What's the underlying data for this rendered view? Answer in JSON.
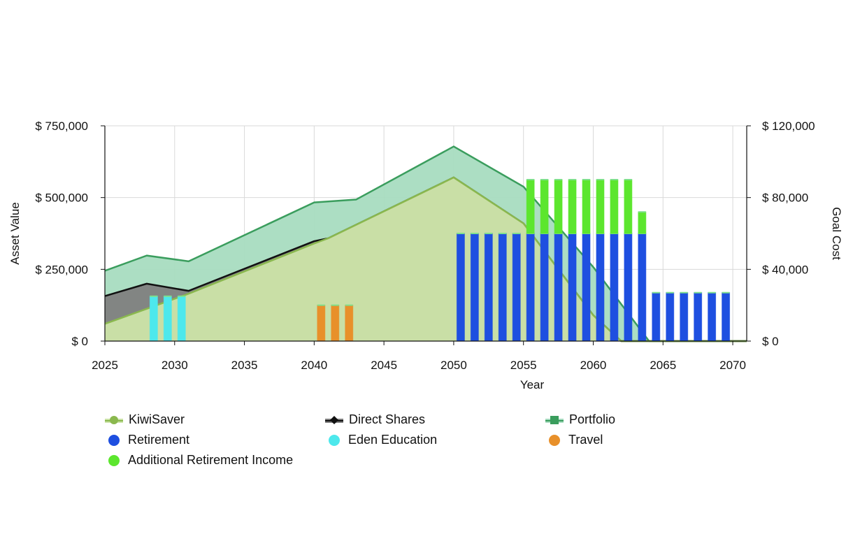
{
  "chart_data": {
    "type": "area",
    "x_axis": {
      "label": "Year",
      "range": [
        2025,
        2071
      ],
      "ticks": [
        2025,
        2030,
        2035,
        2040,
        2045,
        2050,
        2055,
        2060,
        2065,
        2070
      ]
    },
    "y_axis_left": {
      "label": "Asset Value",
      "range": [
        0,
        750000
      ],
      "tick_values": [
        0,
        250000,
        500000,
        750000
      ],
      "tick_labels": [
        "$ 0",
        "$ 250,000",
        "$ 500,000",
        "$ 750,000"
      ]
    },
    "y_axis_right": {
      "label": "Goal Cost",
      "range": [
        0,
        120000
      ],
      "tick_values": [
        0,
        40000,
        80000,
        120000
      ],
      "tick_labels": [
        "$ 0",
        "$ 40,000",
        "$ 80,000",
        "$ 120,000"
      ]
    },
    "grid": true,
    "legend_position": "bottom",
    "asset_series": [
      {
        "name": "Portfolio",
        "color": "#3a9d5d",
        "fill": "#a8dcc0",
        "points": [
          [
            2025,
            245000
          ],
          [
            2028,
            298000
          ],
          [
            2031,
            278000
          ],
          [
            2040,
            483000
          ],
          [
            2043,
            493000
          ],
          [
            2050,
            678000
          ],
          [
            2055,
            538000
          ],
          [
            2060,
            258000
          ],
          [
            2064,
            0
          ],
          [
            2071,
            0
          ]
        ]
      },
      {
        "name": "Direct Shares",
        "color": "#111111",
        "fill": "#808080",
        "points": [
          [
            2025,
            157000
          ],
          [
            2028,
            200000
          ],
          [
            2031,
            175000
          ],
          [
            2040,
            348000
          ],
          [
            2041,
            358000
          ],
          [
            2050,
            570000
          ],
          [
            2055,
            410000
          ],
          [
            2060,
            90000
          ],
          [
            2062,
            0
          ],
          [
            2071,
            0
          ]
        ]
      },
      {
        "name": "KiwiSaver",
        "color": "#8ab84e",
        "fill": "#cce4a8",
        "points": [
          [
            2025,
            60000
          ],
          [
            2031,
            165000
          ],
          [
            2040,
            340000
          ],
          [
            2041,
            358000
          ],
          [
            2050,
            570000
          ],
          [
            2055,
            410000
          ],
          [
            2060,
            90000
          ],
          [
            2062,
            0
          ],
          [
            2071,
            0
          ]
        ]
      }
    ],
    "goal_series": [
      {
        "name": "Eden Education",
        "color": "#4de8ec",
        "bars": [
          [
            2028.5,
            25000
          ],
          [
            2029.5,
            25000
          ],
          [
            2030.5,
            25000
          ]
        ]
      },
      {
        "name": "Travel",
        "color": "#e8902a",
        "bars": [
          [
            2040.5,
            20000
          ],
          [
            2041.5,
            20000
          ],
          [
            2042.5,
            20000
          ]
        ]
      },
      {
        "name": "Retirement",
        "color": "#1e4fe0",
        "bars": [
          [
            2050.5,
            60000
          ],
          [
            2051.5,
            60000
          ],
          [
            2052.5,
            60000
          ],
          [
            2053.5,
            60000
          ],
          [
            2054.5,
            60000
          ],
          [
            2055.5,
            60000
          ],
          [
            2056.5,
            60000
          ],
          [
            2057.5,
            60000
          ],
          [
            2058.5,
            60000
          ],
          [
            2059.5,
            60000
          ],
          [
            2060.5,
            60000
          ],
          [
            2061.5,
            60000
          ],
          [
            2062.5,
            60000
          ],
          [
            2063.5,
            60000
          ],
          [
            2064.5,
            27000
          ],
          [
            2065.5,
            27000
          ],
          [
            2066.5,
            27000
          ],
          [
            2067.5,
            27000
          ],
          [
            2068.5,
            27000
          ],
          [
            2069.5,
            27000
          ]
        ]
      },
      {
        "name": "Additional Retirement Income",
        "color": "#5ce62e",
        "bars": [
          [
            2055.5,
            30000
          ],
          [
            2056.5,
            30000
          ],
          [
            2057.5,
            30000
          ],
          [
            2058.5,
            30000
          ],
          [
            2059.5,
            30000
          ],
          [
            2060.5,
            30000
          ],
          [
            2061.5,
            30000
          ],
          [
            2062.5,
            30000
          ],
          [
            2063.5,
            12000
          ]
        ]
      }
    ]
  },
  "legend": [
    {
      "label": "KiwiSaver",
      "icon": "circle-area-icon",
      "color": "#8ab84e"
    },
    {
      "label": "Direct Shares",
      "icon": "diamond-area-icon",
      "color": "#111111"
    },
    {
      "label": "Portfolio",
      "icon": "square-area-icon",
      "color": "#3a9d5d"
    },
    {
      "label": "Retirement",
      "icon": "circle-icon",
      "color": "#1e4fe0"
    },
    {
      "label": "Eden Education",
      "icon": "circle-icon",
      "color": "#4de8ec"
    },
    {
      "label": "Travel",
      "icon": "circle-icon",
      "color": "#e8902a"
    },
    {
      "label": "Additional Retirement Income",
      "icon": "circle-icon",
      "color": "#5ce62e"
    }
  ]
}
